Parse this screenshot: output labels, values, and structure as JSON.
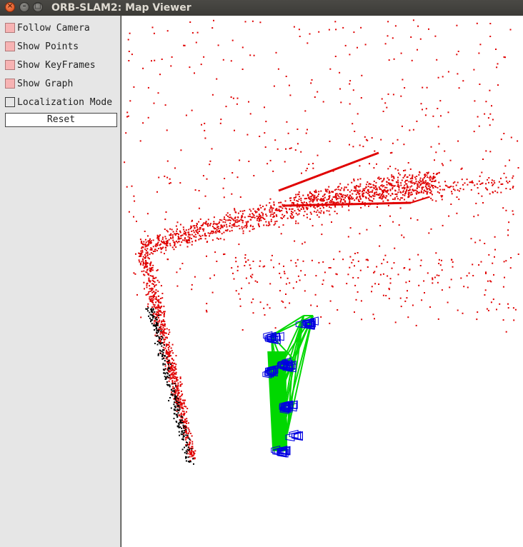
{
  "window": {
    "title": "ORB-SLAM2: Map Viewer",
    "controls": [
      "close",
      "minimize",
      "maximize"
    ]
  },
  "panel": {
    "options": [
      {
        "label": "Follow Camera",
        "checked": true
      },
      {
        "label": "Show Points",
        "checked": true
      },
      {
        "label": "Show KeyFrames",
        "checked": true
      },
      {
        "label": "Show Graph",
        "checked": true
      },
      {
        "label": "Localization Mode",
        "checked": false
      }
    ],
    "reset_label": "Reset"
  },
  "colors": {
    "map_points": "#e00000",
    "local_points": "#000000",
    "keyframes": "#0000e0",
    "graph": "#00d800",
    "checked": "#f7b3b3"
  },
  "icons": {
    "close": "close-icon",
    "minimize": "minimize-icon",
    "maximize": "maximize-icon"
  }
}
